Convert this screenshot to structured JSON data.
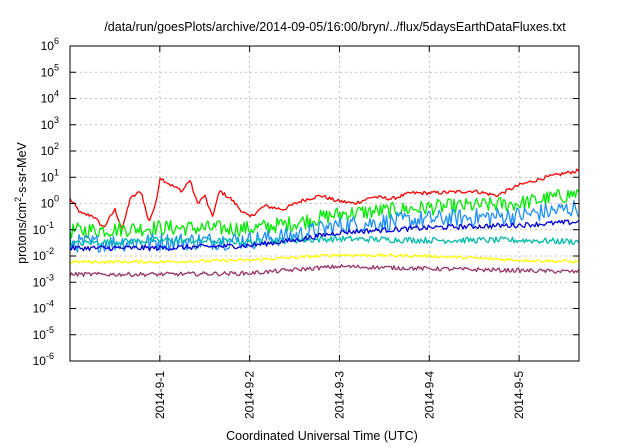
{
  "chart_data": {
    "type": "line",
    "title": "/data/run/goesPlots/archive/2014-09-05/16:00/bryn/../flux/5daysEarthDataFluxes.txt",
    "xlabel": "Coordinated Universal Time (UTC)",
    "ylabel": {
      "pre": "protons/cm",
      "sup": "2",
      "post": "-s-sr-MeV"
    },
    "y_scale": "log",
    "ylim": [
      1e-06,
      1000000.0
    ],
    "y_ticks": [
      {
        "base": "10",
        "exp": "-6",
        "value": 1e-06
      },
      {
        "base": "10",
        "exp": "-5",
        "value": 1e-05
      },
      {
        "base": "10",
        "exp": "-4",
        "value": 0.0001
      },
      {
        "base": "10",
        "exp": "-3",
        "value": 0.001
      },
      {
        "base": "10",
        "exp": "-2",
        "value": 0.01
      },
      {
        "base": "10",
        "exp": "-1",
        "value": 0.1
      },
      {
        "base": "10",
        "exp": "0",
        "value": 1
      },
      {
        "base": "10",
        "exp": "1",
        "value": 10
      },
      {
        "base": "10",
        "exp": "2",
        "value": 100
      },
      {
        "base": "10",
        "exp": "3",
        "value": 1000
      },
      {
        "base": "10",
        "exp": "4",
        "value": 10000
      },
      {
        "base": "10",
        "exp": "5",
        "value": 100000
      },
      {
        "base": "10",
        "exp": "6",
        "value": 1000000
      }
    ],
    "xlim": [
      "2014-08-31T00:00",
      "2014-09-05T16:00"
    ],
    "x_ticks": [
      {
        "label": "2014-9-1",
        "value": "2014-09-01T00:00"
      },
      {
        "label": "2014-9-2",
        "value": "2014-09-02T00:00"
      },
      {
        "label": "2014-9-3",
        "value": "2014-09-03T00:00"
      },
      {
        "label": "2014-9-4",
        "value": "2014-09-04T00:00"
      },
      {
        "label": "2014-9-5",
        "value": "2014-09-05T00:00"
      }
    ],
    "grid": true,
    "series": [
      {
        "color": "#ff0000",
        "jitter": 0.07,
        "points": [
          [
            "2014-08-31T00:00",
            1.5
          ],
          [
            "2014-08-31T03:00",
            0.4
          ],
          [
            "2014-08-31T06:00",
            0.35
          ],
          [
            "2014-08-31T09:00",
            0.12
          ],
          [
            "2014-08-31T12:00",
            0.6
          ],
          [
            "2014-08-31T14:00",
            0.1
          ],
          [
            "2014-08-31T16:00",
            1.5
          ],
          [
            "2014-08-31T19:00",
            3
          ],
          [
            "2014-08-31T21:00",
            0.2
          ],
          [
            "2014-08-31T23:00",
            1.0
          ],
          [
            "2014-09-01T00:00",
            10
          ],
          [
            "2014-09-01T03:00",
            5
          ],
          [
            "2014-09-01T06:00",
            3
          ],
          [
            "2014-09-01T08:00",
            8
          ],
          [
            "2014-09-01T10:00",
            1
          ],
          [
            "2014-09-01T12:00",
            2
          ],
          [
            "2014-09-01T14:00",
            0.3
          ],
          [
            "2014-09-01T16:00",
            3
          ],
          [
            "2014-09-01T19:00",
            1.5
          ],
          [
            "2014-09-01T22:00",
            0.5
          ],
          [
            "2014-09-02T00:00",
            0.3
          ],
          [
            "2014-09-02T04:00",
            0.8
          ],
          [
            "2014-09-02T09:00",
            0.6
          ],
          [
            "2014-09-02T14:00",
            1.3
          ],
          [
            "2014-09-02T19:00",
            2.0
          ],
          [
            "2014-09-02T23:00",
            1.3
          ],
          [
            "2014-09-03T04:00",
            1.0
          ],
          [
            "2014-09-03T09:00",
            1.8
          ],
          [
            "2014-09-03T14:00",
            1.5
          ],
          [
            "2014-09-03T19:00",
            2.5
          ],
          [
            "2014-09-04T00:00",
            2.5
          ],
          [
            "2014-09-04T06:00",
            2.7
          ],
          [
            "2014-09-04T12:00",
            3.0
          ],
          [
            "2014-09-04T18:00",
            2.0
          ],
          [
            "2014-09-05T00:00",
            5
          ],
          [
            "2014-09-05T06:00",
            9
          ],
          [
            "2014-09-05T12:00",
            14
          ],
          [
            "2014-09-05T16:00",
            18
          ]
        ]
      },
      {
        "color": "#00ee00",
        "jitter": 0.3,
        "points": [
          [
            "2014-08-31T00:00",
            0.09
          ],
          [
            "2014-09-01T00:00",
            0.12
          ],
          [
            "2014-09-02T00:00",
            0.11
          ],
          [
            "2014-09-02T12:00",
            0.18
          ],
          [
            "2014-09-03T00:00",
            0.4
          ],
          [
            "2014-09-04T00:00",
            0.7
          ],
          [
            "2014-09-05T00:00",
            1.0
          ],
          [
            "2014-09-05T16:00",
            2.5
          ]
        ]
      },
      {
        "color": "#1e90ff",
        "jitter": 0.35,
        "points": [
          [
            "2014-08-31T00:00",
            0.03
          ],
          [
            "2014-09-01T00:00",
            0.035
          ],
          [
            "2014-09-02T00:00",
            0.04
          ],
          [
            "2014-09-02T12:00",
            0.06
          ],
          [
            "2014-09-03T00:00",
            0.15
          ],
          [
            "2014-09-04T00:00",
            0.25
          ],
          [
            "2014-09-05T00:00",
            0.35
          ],
          [
            "2014-09-05T16:00",
            0.7
          ]
        ]
      },
      {
        "color": "#00bbaa",
        "jitter": 0.12,
        "points": [
          [
            "2014-08-31T00:00",
            0.03
          ],
          [
            "2014-09-01T00:00",
            0.04
          ],
          [
            "2014-09-02T00:00",
            0.035
          ],
          [
            "2014-09-03T00:00",
            0.045
          ],
          [
            "2014-09-04T00:00",
            0.04
          ],
          [
            "2014-09-05T00:00",
            0.04
          ],
          [
            "2014-09-05T16:00",
            0.035
          ]
        ]
      },
      {
        "color": "#0000dd",
        "jitter": 0.1,
        "points": [
          [
            "2014-08-31T00:00",
            0.02
          ],
          [
            "2014-09-01T00:00",
            0.02
          ],
          [
            "2014-09-02T00:00",
            0.025
          ],
          [
            "2014-09-02T12:00",
            0.04
          ],
          [
            "2014-09-03T00:00",
            0.08
          ],
          [
            "2014-09-04T00:00",
            0.12
          ],
          [
            "2014-09-05T00:00",
            0.15
          ],
          [
            "2014-09-05T16:00",
            0.2
          ]
        ]
      },
      {
        "color": "#ffff00",
        "jitter": 0.06,
        "points": [
          [
            "2014-08-31T00:00",
            0.006
          ],
          [
            "2014-09-01T00:00",
            0.006
          ],
          [
            "2014-09-02T00:00",
            0.007
          ],
          [
            "2014-09-03T00:00",
            0.011
          ],
          [
            "2014-09-04T00:00",
            0.01
          ],
          [
            "2014-09-05T00:00",
            0.007
          ],
          [
            "2014-09-05T16:00",
            0.006
          ]
        ]
      },
      {
        "color": "#993366",
        "jitter": 0.08,
        "points": [
          [
            "2014-08-31T00:00",
            0.002
          ],
          [
            "2014-09-01T00:00",
            0.002
          ],
          [
            "2014-09-02T00:00",
            0.0022
          ],
          [
            "2014-09-02T12:00",
            0.003
          ],
          [
            "2014-09-03T00:00",
            0.004
          ],
          [
            "2014-09-04T00:00",
            0.0033
          ],
          [
            "2014-09-05T00:00",
            0.0028
          ],
          [
            "2014-09-05T16:00",
            0.0025
          ]
        ]
      }
    ]
  }
}
